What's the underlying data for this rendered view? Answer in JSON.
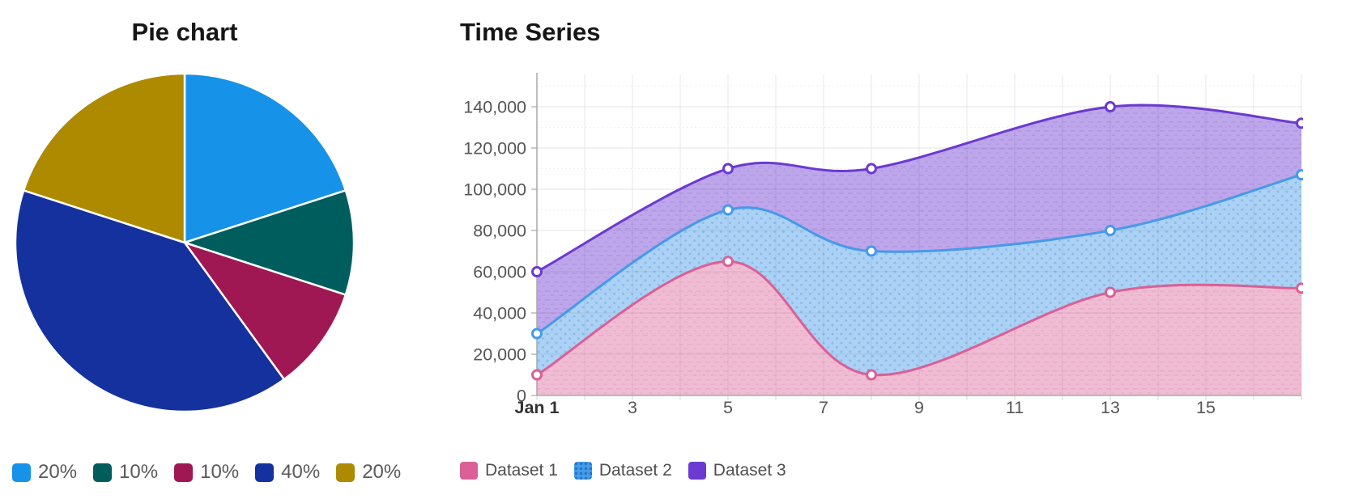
{
  "chart_data": [
    {
      "type": "pie",
      "title": "Pie chart",
      "labels": [
        "20%",
        "10%",
        "10%",
        "40%",
        "20%"
      ],
      "values": [
        20,
        10,
        10,
        40,
        20
      ],
      "colors": [
        "#1692e8",
        "#005d5d",
        "#9f1853",
        "#14319d",
        "#ad8a00"
      ],
      "start_angle": "top",
      "direction": "clockwise",
      "slice_border_color": "#ffffff",
      "legend_position": "bottom"
    },
    {
      "type": "area",
      "title": "Time Series",
      "x": [
        1,
        5,
        8,
        13,
        17
      ],
      "series": [
        {
          "name": "Dataset 1",
          "values": [
            10000,
            65000,
            10000,
            50000,
            52000
          ],
          "color": "#da6096",
          "fill": "rgba(218,96,150,0.42)",
          "pattern": "dash"
        },
        {
          "name": "Dataset 2",
          "values": [
            30000,
            90000,
            70000,
            80000,
            107000
          ],
          "color": "#459ae9",
          "fill": "rgba(69,154,233,0.45)",
          "pattern": "dot"
        },
        {
          "name": "Dataset 3",
          "values": [
            60000,
            110000,
            110000,
            140000,
            132000
          ],
          "color": "#6c39d1",
          "fill": "rgba(108,57,209,0.45)",
          "pattern": "dash"
        }
      ],
      "x_ticks": [
        {
          "pos": 1,
          "label": "Jan 1",
          "bold": true
        },
        {
          "pos": 3,
          "label": "3"
        },
        {
          "pos": 5,
          "label": "5"
        },
        {
          "pos": 7,
          "label": "7"
        },
        {
          "pos": 9,
          "label": "9"
        },
        {
          "pos": 11,
          "label": "11"
        },
        {
          "pos": 13,
          "label": "13"
        },
        {
          "pos": 15,
          "label": "15"
        }
      ],
      "y_ticks": [
        {
          "pos": 0,
          "label": "0"
        },
        {
          "pos": 20000,
          "label": "20,000"
        },
        {
          "pos": 40000,
          "label": "40,000"
        },
        {
          "pos": 60000,
          "label": "60,000"
        },
        {
          "pos": 80000,
          "label": "80,000"
        },
        {
          "pos": 100000,
          "label": "100,000"
        },
        {
          "pos": 120000,
          "label": "120,000"
        },
        {
          "pos": 140000,
          "label": "140,000"
        }
      ],
      "xlim": [
        1,
        17
      ],
      "ylim": [
        0,
        155700
      ],
      "grid": true,
      "smooth": true,
      "point_style": "circle-white-fill",
      "legend_position": "bottom"
    }
  ]
}
